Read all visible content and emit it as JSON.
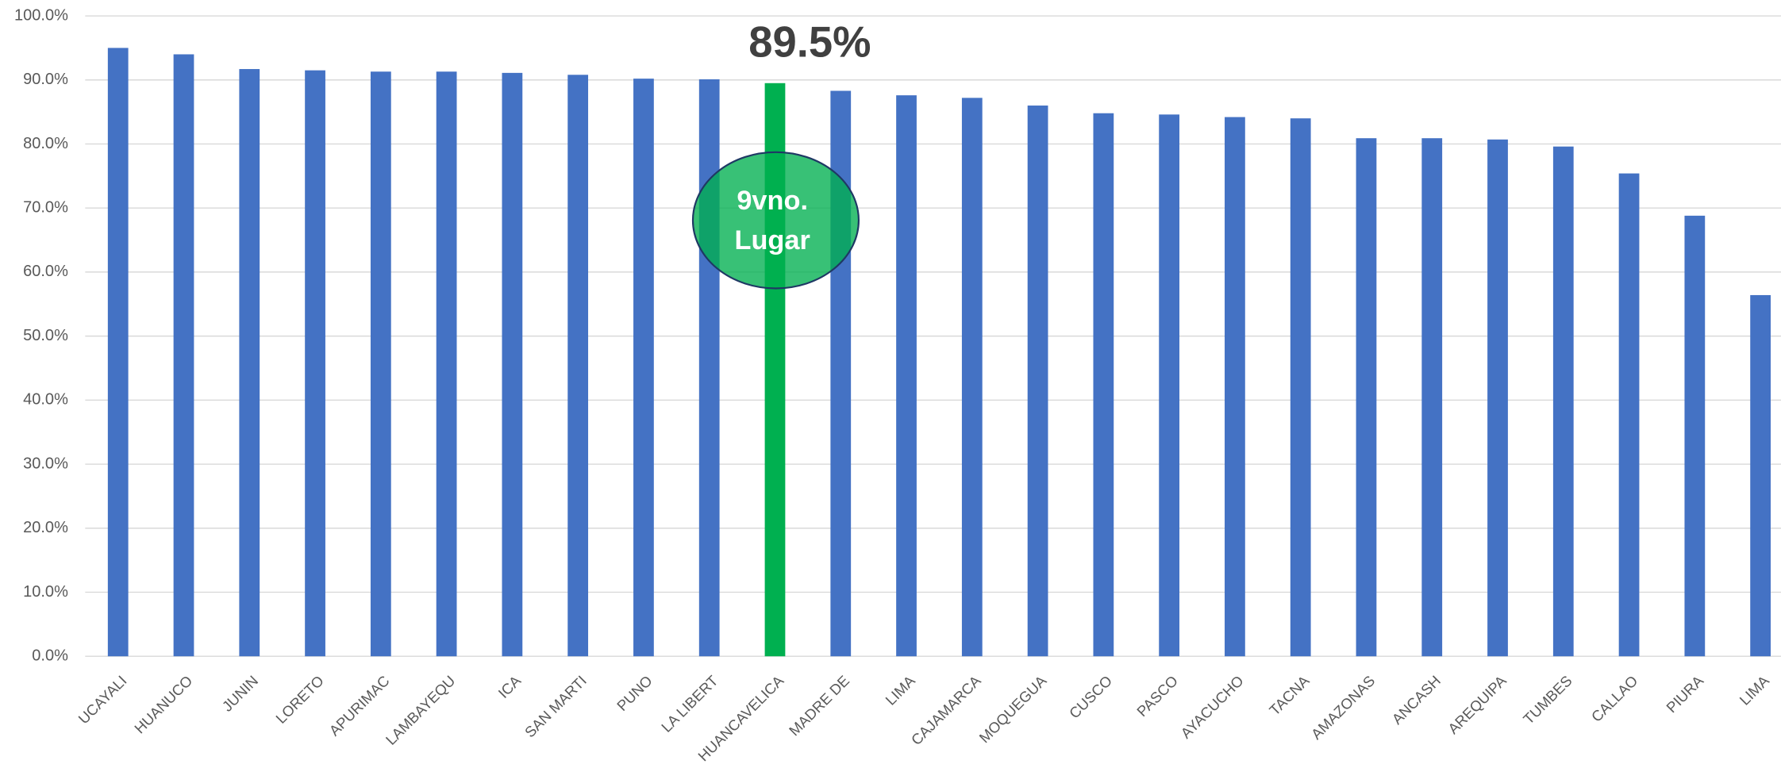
{
  "chart_data": {
    "type": "bar",
    "categories": [
      "UCAYALI",
      "HUANUCO",
      "JUNIN",
      "LORETO",
      "APURIMAC",
      "LAMBAYEQU",
      "ICA",
      "SAN MARTI",
      "PUNO",
      "LA LIBERT",
      "HUANCAVELICA",
      "MADRE DE",
      "LIMA",
      "CAJAMARCA",
      "MOQUEGUA",
      "CUSCO",
      "PASCO",
      "AYACUCHO",
      "TACNA",
      "AMAZONAS",
      "ANCASH",
      "AREQUIPA",
      "TUMBES",
      "CALLAO",
      "PIURA",
      "LIMA"
    ],
    "values": [
      95.0,
      94.0,
      91.7,
      91.5,
      91.3,
      91.3,
      91.1,
      90.8,
      90.2,
      90.1,
      89.5,
      88.3,
      87.6,
      87.2,
      86.0,
      84.8,
      84.6,
      84.2,
      84.0,
      80.9,
      80.9,
      80.7,
      79.6,
      75.4,
      68.8,
      56.4
    ],
    "colors": [
      "#4472c4",
      "#4472c4",
      "#4472c4",
      "#4472c4",
      "#4472c4",
      "#4472c4",
      "#4472c4",
      "#4472c4",
      "#4472c4",
      "#4472c4",
      "#00b050",
      "#4472c4",
      "#4472c4",
      "#4472c4",
      "#4472c4",
      "#4472c4",
      "#4472c4",
      "#4472c4",
      "#4472c4",
      "#4472c4",
      "#4472c4",
      "#4472c4",
      "#4472c4",
      "#4472c4",
      "#4472c4",
      "#4472c4"
    ],
    "ylim": [
      0,
      100
    ],
    "yticks": [
      {
        "value": 0,
        "label": "0.0%"
      },
      {
        "value": 10,
        "label": "10.0%"
      },
      {
        "value": 20,
        "label": "20.0%"
      },
      {
        "value": 30,
        "label": "30.0%"
      },
      {
        "value": 40,
        "label": "40.0%"
      },
      {
        "value": 50,
        "label": "50.0%"
      },
      {
        "value": 60,
        "label": "60.0%"
      },
      {
        "value": 70,
        "label": "70.0%"
      },
      {
        "value": 80,
        "label": "80.0%"
      },
      {
        "value": 90,
        "label": "90.0%"
      },
      {
        "value": 100,
        "label": "100.0%"
      }
    ],
    "grid": true,
    "annotations": [
      {
        "text": "89.5%"
      },
      {
        "lines": [
          "9vno.",
          "Lugar"
        ]
      }
    ]
  }
}
